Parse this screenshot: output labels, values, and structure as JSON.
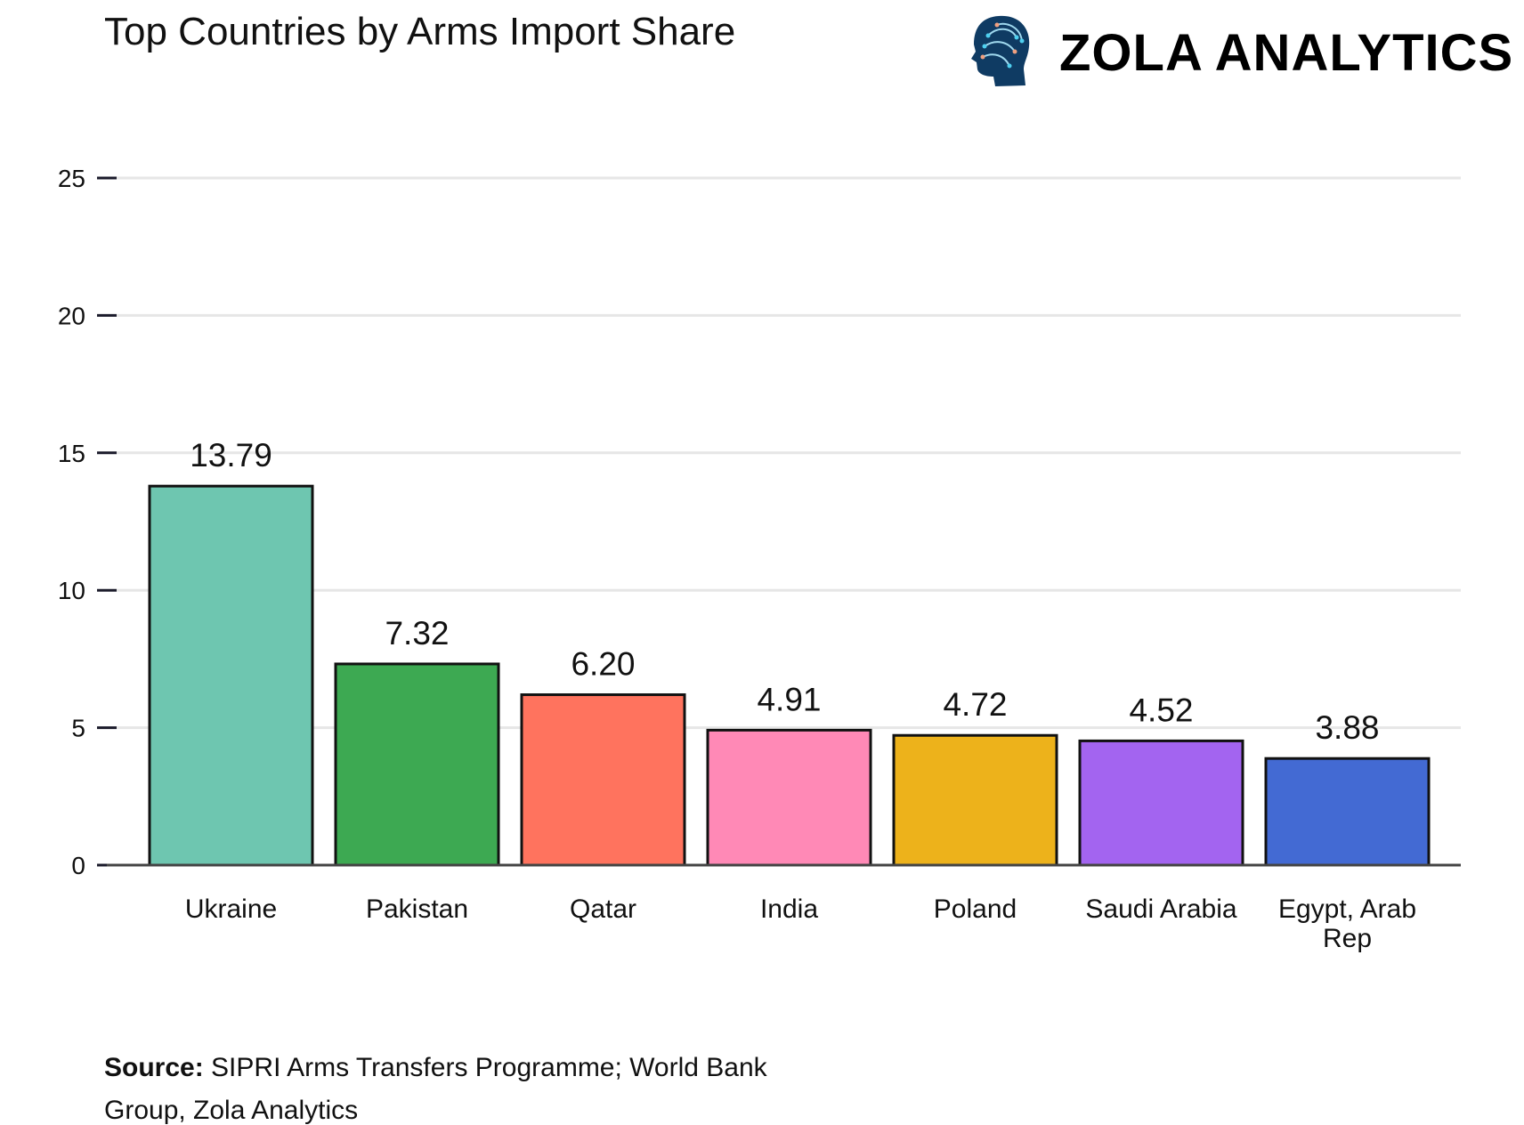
{
  "header": {
    "title": "Top Countries by Arms Import Share",
    "logo_text": "ZOLA ANALYTICS",
    "logo_icon": "circuit-head-icon"
  },
  "chart_data": {
    "type": "bar",
    "title": "Top Countries by Arms Import Share",
    "xlabel": "",
    "ylabel": "",
    "categories": [
      "Ukraine",
      "Pakistan",
      "Qatar",
      "India",
      "Poland",
      "Saudi Arabia",
      "Egypt, Arab Rep"
    ],
    "values": [
      13.79,
      7.32,
      6.2,
      4.91,
      4.72,
      4.52,
      3.88
    ],
    "value_labels": [
      "13.79",
      "7.32",
      "6.20",
      "4.91",
      "4.72",
      "4.52",
      "3.88"
    ],
    "colors": [
      "#6EC6B0",
      "#3DA952",
      "#FF735E",
      "#FF89B6",
      "#EDB21B",
      "#A364F0",
      "#436AD3"
    ],
    "ylim": [
      0,
      25
    ],
    "yticks": [
      0,
      5,
      10,
      15,
      20,
      25
    ],
    "grid": true,
    "legend": "none"
  },
  "footer": {
    "source_label": "Source:",
    "source_line1": "SIPRI Arms Transfers Programme; World Bank",
    "source_line2": "Group, Zola Analytics"
  }
}
